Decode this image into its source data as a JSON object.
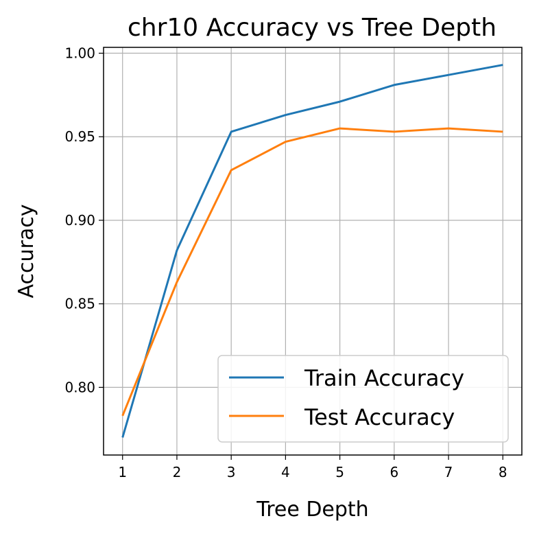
{
  "chart_data": {
    "type": "line",
    "title": "chr10 Accuracy vs Tree Depth",
    "xlabel": "Tree Depth",
    "ylabel": "Accuracy",
    "x": [
      1,
      2,
      3,
      4,
      5,
      6,
      7,
      8
    ],
    "series": [
      {
        "name": "Train Accuracy",
        "color": "#1f77b4",
        "values": [
          0.77,
          0.882,
          0.953,
          0.963,
          0.971,
          0.981,
          0.987,
          0.993
        ]
      },
      {
        "name": "Test Accuracy",
        "color": "#ff7f0e",
        "values": [
          0.783,
          0.863,
          0.93,
          0.947,
          0.955,
          0.953,
          0.955,
          0.953
        ]
      }
    ],
    "xlim": [
      0.65,
      8.35
    ],
    "ylim": [
      0.7595,
      1.0035
    ],
    "xticks": [
      "1",
      "2",
      "3",
      "4",
      "5",
      "6",
      "7",
      "8"
    ],
    "yticks": [
      "0.80",
      "0.85",
      "0.90",
      "0.95",
      "1.00"
    ],
    "grid": true,
    "legend_position": "lower-right"
  }
}
